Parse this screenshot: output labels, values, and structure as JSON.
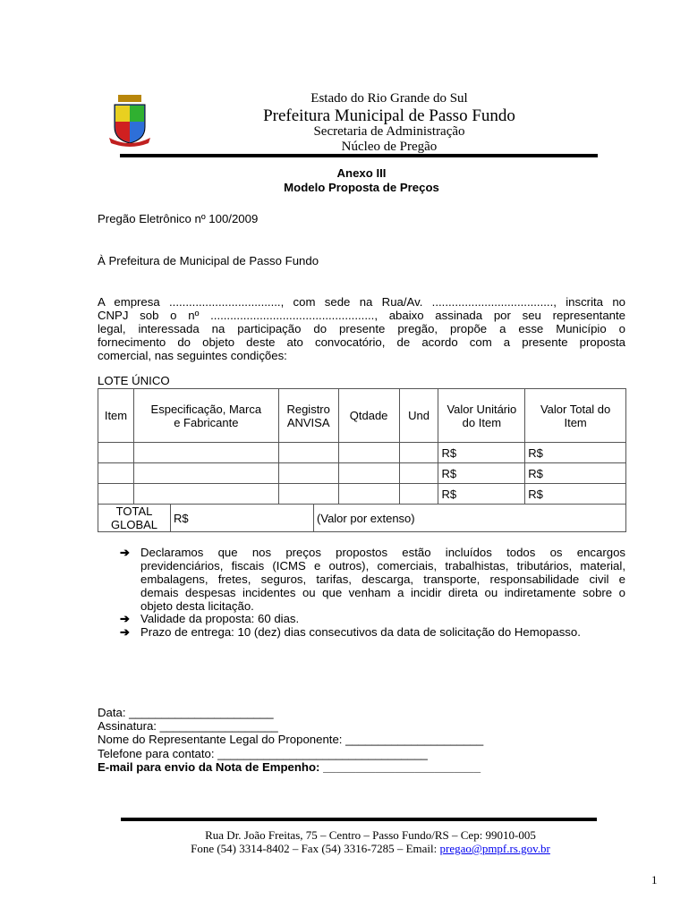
{
  "header": {
    "line1": "Estado do Rio Grande do Sul",
    "line2": "Prefeitura Municipal de Passo Fundo",
    "line3": "Secretaria de Administração",
    "line4": "Núcleo de Pregão"
  },
  "title": {
    "line1": "Anexo III",
    "line2": "Modelo Proposta de Preços"
  },
  "pregao": "Pregão Eletrônico nº 100/2009",
  "recipient": "À Prefeitura de Municipal de Passo Fundo",
  "paragraph": [
    "A empresa .................................., com sede na Rua/Av. ....................................., inscrita no",
    "CNPJ sob o nº .................................................., abaixo assinada por seu representante",
    "legal, interessada na participação do presente pregão, propõe a esse Município o",
    "fornecimento do objeto deste ato convocatório, de acordo com a presente proposta",
    "comercial, nas seguintes condições:"
  ],
  "lote": "LOTE ÚNICO",
  "table": {
    "headers": [
      "Item",
      "Especificação, Marca e Fabricante",
      "Registro ANVISA",
      "Qtdade",
      "Und",
      "Valor Unitário do Item",
      "Valor Total do Item"
    ],
    "rows": [
      [
        "",
        "",
        "",
        "",
        "",
        "R$",
        "R$"
      ],
      [
        "",
        "",
        "",
        "",
        "",
        "R$",
        "R$"
      ],
      [
        "",
        "",
        "",
        "",
        "",
        "R$",
        "R$"
      ]
    ],
    "total_label": "TOTAL GLOBAL",
    "total_value": "R$",
    "total_extenso": "(Valor por extenso)"
  },
  "bullets": [
    {
      "lines": [
        "Declaramos que nos preços propostos estão incluídos todos os encargos",
        "previdenciários, fiscais (ICMS e outros), comerciais, trabalhistas, tributários, material,",
        "embalagens, fretes, seguros, tarifas, descarga, transporte, responsabilidade civil e",
        "demais despesas incidentes ou que venham a incidir direta ou indiretamente sobre o",
        "objeto desta licitação."
      ]
    },
    {
      "lines": [
        "Validade da proposta: 60 dias."
      ]
    },
    {
      "lines": [
        "Prazo de entrega: 10 (dez) dias consecutivos da data de solicitação do Hemopasso."
      ]
    }
  ],
  "arrow_icon": "➔",
  "signature": {
    "data": "Data: ______________________",
    "assinatura": "Assinatura: __________________",
    "nome": "Nome do Representante Legal do Proponente: _____________________",
    "telefone": "Telefone para contato: ________________________________",
    "email": "E-mail para envio da Nota de Empenho: ________________________"
  },
  "footer": {
    "address": "Rua Dr. João Freitas, 75 – Centro – Passo Fundo/RS – Cep: 99010-005",
    "contact": "Fone (54) 3314-8402 – Fax (54) 3316-7285 – Email: ",
    "email": "pregao@pmpf.rs.gov.br",
    "link_color": "#0000ee"
  },
  "page_number": "1"
}
